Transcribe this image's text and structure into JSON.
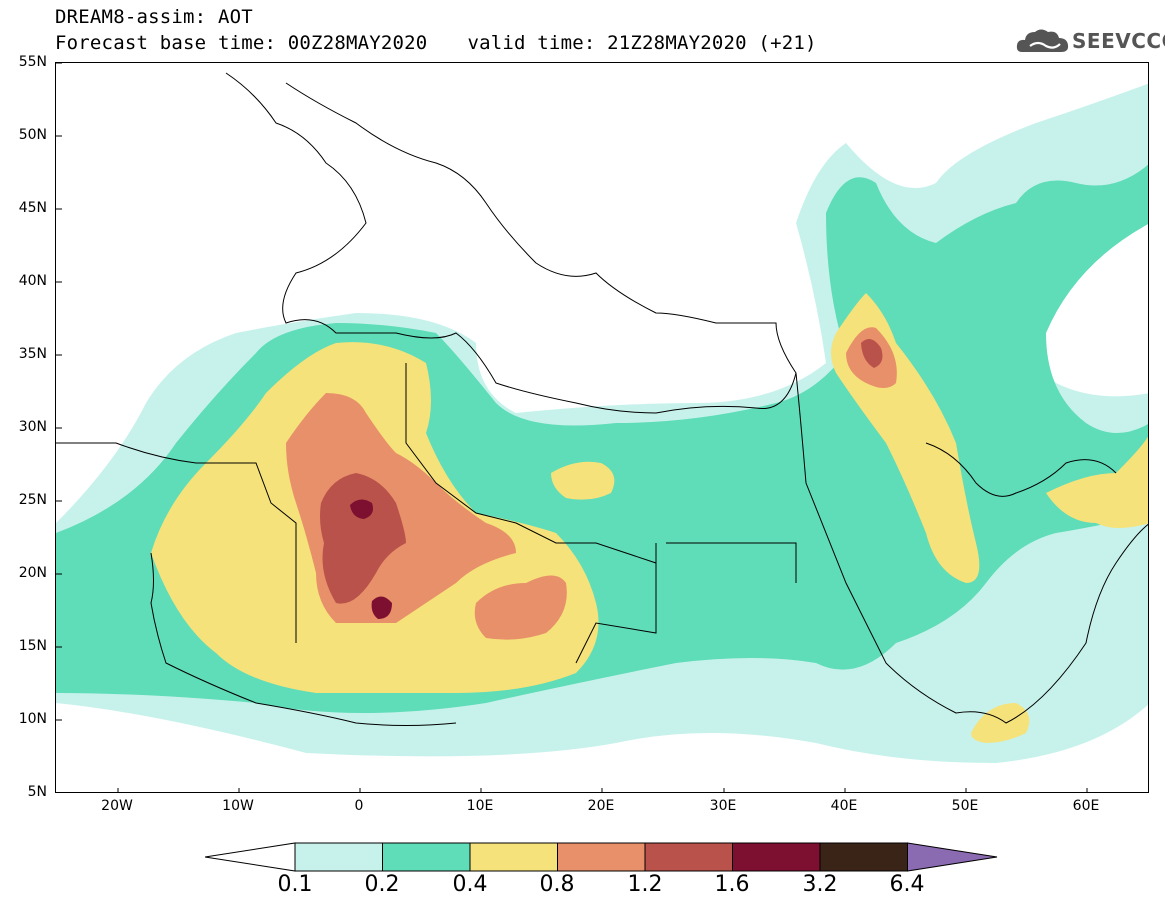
{
  "header": {
    "title_line1": "DREAM8-assim: AOT",
    "base_time": "Forecast base time: 00Z28MAY2020",
    "valid_time": "valid time: 21Z28MAY2020 (+21)",
    "logo_text": "SEEVCCC",
    "logo_icon": "cloud-icon"
  },
  "map": {
    "region": "North Africa, Europe, Middle East",
    "lon_range": [
      -25,
      65
    ],
    "lat_range": [
      5,
      55
    ],
    "lat_labels": [
      "55N",
      "50N",
      "45N",
      "40N",
      "35N",
      "30N",
      "25N",
      "20N",
      "15N",
      "10N",
      "5N"
    ],
    "lon_labels": [
      "20W",
      "10W",
      "0",
      "10E",
      "20E",
      "30E",
      "40E",
      "50E",
      "60E"
    ]
  },
  "colorbar": {
    "labels": [
      "0.1",
      "0.2",
      "0.4",
      "0.8",
      "1.2",
      "1.6",
      "3.2",
      "6.4"
    ],
    "colors": [
      "#c7f2ec",
      "#5fdcb8",
      "#f5e27a",
      "#e8906a",
      "#b8524a",
      "#7d1030",
      "#3a2418",
      "#8a6ab0"
    ],
    "below_color": "#ffffff"
  },
  "legend_colors": {
    "aot_0_1": "#c7f2ec",
    "aot_0_2": "#5fdcb8",
    "aot_0_4": "#f5e27a",
    "aot_0_8": "#e8906a",
    "aot_1_2": "#b8524a",
    "aot_1_6": "#7d1030",
    "aot_3_2": "#3a2418",
    "aot_6_4": "#8a6ab0"
  }
}
